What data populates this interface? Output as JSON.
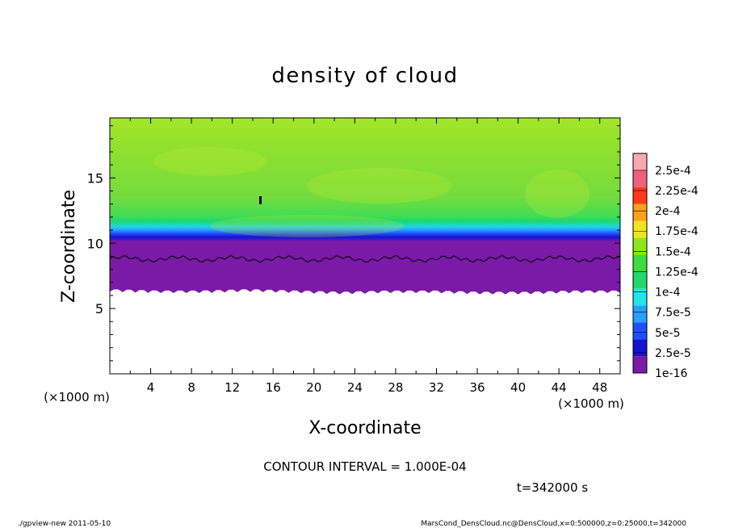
{
  "chart_data": {
    "type": "heatmap",
    "title": "density of cloud",
    "xlabel": "X-coordinate",
    "ylabel": "Z-coordinate",
    "x_unit_left": "(×1000 m)",
    "x_unit_right": "(×1000 m)",
    "xlim": [
      0,
      50
    ],
    "ylim": [
      0,
      19.6
    ],
    "x_ticks": [
      "4",
      "8",
      "12",
      "16",
      "20",
      "24",
      "28",
      "32",
      "36",
      "40",
      "44",
      "48"
    ],
    "y_ticks": [
      "5",
      "10",
      "15"
    ],
    "colorbar": {
      "labels": [
        "1e-16",
        "2.5e-5",
        "5e-5",
        "7.5e-5",
        "1e-4",
        "1.25e-4",
        "1.5e-4",
        "1.75e-4",
        "2e-4",
        "2.25e-4",
        "2.5e-4"
      ],
      "colors": [
        "#7a1aa6",
        "#1414d2",
        "#1e50ff",
        "#28a0ff",
        "#20e6e6",
        "#22d86a",
        "#3cdc3c",
        "#8ce61e",
        "#f0e61e",
        "#ff9f1a",
        "#ff3a1a",
        "#f0607a",
        "#f8a8b4"
      ]
    },
    "field": {
      "cloud_base_z": [
        6.4,
        6.3,
        6.3,
        6.4,
        6.3,
        6.2,
        6.3,
        6.3,
        6.2,
        6.2,
        6.3,
        6.3
      ],
      "contour_level": 0.0001,
      "contour_z": 8.8,
      "upper_value": 0.000145,
      "lower_cloud_value": 5e-05
    },
    "contour_interval": "CONTOUR INTERVAL = 1.000E-04",
    "time_label": "t=342000 s"
  },
  "footer": {
    "left": "./gpview-new   2011-05-10",
    "right": "MarsCond_DensCloud.nc@DensCloud,x=0:500000,z=0:25000,t=342000"
  }
}
